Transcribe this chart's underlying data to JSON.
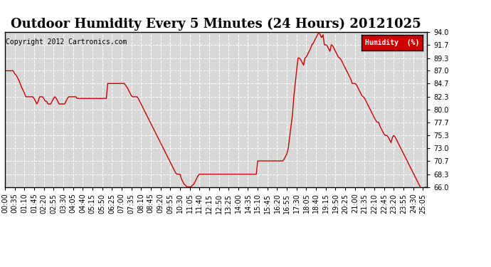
{
  "title": "Outdoor Humidity Every 5 Minutes (24 Hours) 20121025",
  "copyright": "Copyright 2012 Cartronics.com",
  "legend_label": "Humidity  (%)",
  "legend_bg": "#cc0000",
  "line_color": "#cc0000",
  "bg_color": "#ffffff",
  "plot_bg": "#d8d8d8",
  "grid_color": "#ffffff",
  "ylim": [
    66.0,
    94.0
  ],
  "yticks": [
    66.0,
    68.3,
    70.7,
    73.0,
    75.3,
    77.7,
    80.0,
    82.3,
    84.7,
    87.0,
    89.3,
    91.7,
    94.0
  ],
  "humidity_data": [
    87.0,
    87.0,
    87.0,
    87.0,
    87.0,
    87.0,
    87.0,
    86.5,
    86.2,
    85.8,
    85.3,
    84.7,
    84.0,
    83.5,
    83.0,
    82.3,
    82.3,
    82.3,
    82.3,
    82.3,
    82.3,
    82.0,
    81.5,
    81.0,
    81.5,
    82.3,
    82.3,
    82.3,
    82.0,
    81.5,
    81.5,
    81.0,
    81.0,
    81.0,
    81.5,
    82.0,
    82.3,
    82.0,
    81.5,
    81.0,
    81.0,
    81.0,
    81.0,
    81.0,
    81.5,
    82.0,
    82.3,
    82.3,
    82.3,
    82.3,
    82.3,
    82.3,
    82.0,
    82.0,
    82.0,
    82.0,
    82.0,
    82.0,
    82.0,
    82.0,
    82.0,
    82.0,
    82.0,
    82.0,
    82.0,
    82.0,
    82.0,
    82.0,
    82.0,
    82.0,
    82.0,
    82.0,
    82.0,
    82.0,
    84.7,
    84.7,
    84.7,
    84.7,
    84.7,
    84.7,
    84.7,
    84.7,
    84.7,
    84.7,
    84.7,
    84.7,
    84.7,
    84.3,
    84.0,
    83.5,
    83.0,
    82.5,
    82.3,
    82.3,
    82.3,
    82.3,
    82.0,
    81.5,
    81.0,
    80.5,
    80.0,
    79.5,
    79.0,
    78.5,
    78.0,
    77.5,
    77.0,
    76.5,
    76.0,
    75.5,
    75.0,
    74.5,
    74.0,
    73.5,
    73.0,
    72.5,
    72.0,
    71.5,
    71.0,
    70.5,
    70.0,
    69.5,
    69.0,
    68.5,
    68.3,
    68.3,
    68.3,
    67.5,
    67.0,
    66.5,
    66.3,
    66.0,
    66.0,
    66.0,
    66.0,
    66.3,
    66.5,
    67.0,
    67.5,
    68.0,
    68.3,
    68.3,
    68.3,
    68.3,
    68.3,
    68.3,
    68.3,
    68.3,
    68.3,
    68.3,
    68.3,
    68.3,
    68.3,
    68.3,
    68.3,
    68.3,
    68.3,
    68.3,
    68.3,
    68.3,
    68.3,
    68.3,
    68.3,
    68.3,
    68.3,
    68.3,
    68.3,
    68.3,
    68.3,
    68.3,
    68.3,
    68.3,
    68.3,
    68.3,
    68.3,
    68.3,
    68.3,
    68.3,
    68.3,
    68.3,
    68.3,
    68.3,
    70.7,
    70.7,
    70.7,
    70.7,
    70.7,
    70.7,
    70.7,
    70.7,
    70.7,
    70.7,
    70.7,
    70.7,
    70.7,
    70.7,
    70.7,
    70.7,
    70.7,
    70.7,
    70.7,
    71.0,
    71.5,
    72.0,
    73.0,
    75.0,
    77.0,
    79.0,
    82.3,
    84.7,
    87.0,
    89.3,
    89.3,
    89.0,
    88.5,
    88.0,
    89.3,
    89.5,
    90.0,
    90.5,
    91.0,
    91.7,
    92.0,
    92.5,
    93.0,
    93.5,
    94.0,
    93.5,
    93.0,
    93.5,
    91.7,
    91.7,
    91.5,
    91.0,
    90.5,
    91.7,
    91.5,
    91.0,
    90.5,
    90.0,
    89.5,
    89.3,
    89.0,
    88.5,
    88.0,
    87.5,
    87.0,
    86.5,
    86.0,
    85.5,
    84.7,
    84.7,
    84.7,
    84.5,
    84.0,
    83.5,
    83.0,
    82.5,
    82.3,
    82.0,
    81.5,
    81.0,
    80.5,
    80.0,
    79.5,
    79.0,
    78.5,
    78.0,
    77.7,
    77.7,
    77.0,
    76.5,
    76.0,
    75.5,
    75.3,
    75.3,
    75.0,
    74.5,
    74.0,
    75.0,
    75.3,
    75.0,
    74.5,
    74.0,
    73.5,
    73.0,
    72.5,
    72.0,
    71.5,
    71.0,
    70.5,
    70.0,
    69.5,
    69.0,
    68.5,
    68.0,
    67.5,
    67.0,
    66.5,
    66.0,
    65.5,
    65.0,
    65.5,
    66.0,
    65.5
  ],
  "xtick_step_minutes": 35,
  "data_interval_minutes": 5,
  "title_fontsize": 13,
  "tick_fontsize": 7,
  "copyright_fontsize": 7
}
